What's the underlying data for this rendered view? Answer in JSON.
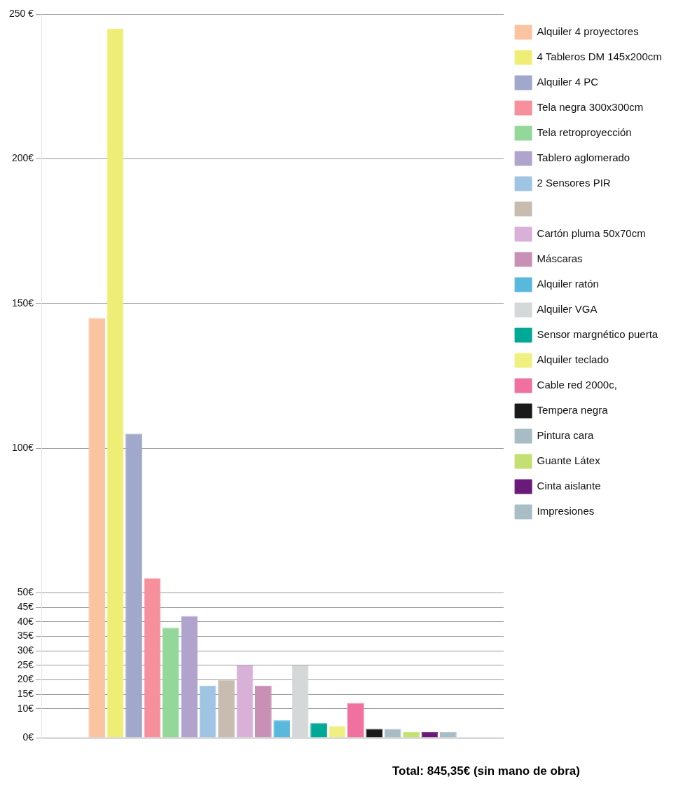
{
  "chart_data": {
    "type": "bar",
    "categories": [
      null
    ],
    "tick_labels": "y",
    "grid": "y",
    "legend": "right",
    "ylim": [
      0,
      250
    ],
    "yticks": [
      {
        "value": 0,
        "label": "0€"
      },
      {
        "value": 10,
        "label": "10€"
      },
      {
        "value": 15,
        "label": "15€"
      },
      {
        "value": 20,
        "label": "20€"
      },
      {
        "value": 25,
        "label": "25€"
      },
      {
        "value": 30,
        "label": "30€"
      },
      {
        "value": 35,
        "label": "35€"
      },
      {
        "value": 40,
        "label": "40€"
      },
      {
        "value": 45,
        "label": "45€"
      },
      {
        "value": 50,
        "label": "50€"
      },
      {
        "value": 100,
        "label": "100€"
      },
      {
        "value": 150,
        "label": "150€"
      },
      {
        "value": 200,
        "label": "200€"
      },
      {
        "value": 250,
        "label": "250 €"
      }
    ],
    "series": [
      {
        "name": "Alquiler 4 proyectores",
        "color": "#fbc4a0",
        "values": [
          145
        ]
      },
      {
        "name": "4 Tableros DM 145x200cm",
        "color": "#eeee77",
        "values": [
          245
        ]
      },
      {
        "name": "Alquiler 4 PC",
        "color": "#a0a8cc",
        "values": [
          105
        ]
      },
      {
        "name": "Tela negra 300x300cm",
        "color": "#f5909c",
        "values": [
          55
        ]
      },
      {
        "name": "Tela retroproyección",
        "color": "#93d89a",
        "values": [
          38
        ]
      },
      {
        "name": "Tablero aglomerado",
        "color": "#b0a4cc",
        "values": [
          42
        ]
      },
      {
        "name": "2 Sensores PIR",
        "color": "#a0c4e4",
        "values": [
          18
        ]
      },
      {
        "color": "#c8bcb0",
        "values": [
          20
        ]
      },
      {
        "name": "Cartón pluma 50x70cm",
        "color": "#d8b0d8",
        "values": [
          25
        ]
      },
      {
        "name": "Máscaras",
        "color": "#c890b4",
        "values": [
          18
        ]
      },
      {
        "name": "Alquiler ratón",
        "color": "#5ab8dc",
        "values": [
          6
        ]
      },
      {
        "name": "Alquiler VGA",
        "color": "#d4d8d8",
        "values": [
          25
        ]
      },
      {
        "name": "Sensor margnético puerta",
        "color": "#00a896",
        "values": [
          5
        ]
      },
      {
        "name": "Alquiler teclado",
        "color": "#f0f080",
        "values": [
          4
        ]
      },
      {
        "name": "Cable red 2000c,",
        "color": "#f070a0",
        "values": [
          12
        ]
      },
      {
        "name": "Tempera negra",
        "color": "#1a1a1a",
        "values": [
          3
        ]
      },
      {
        "name": "Pintura cara",
        "color": "#a8bcc4",
        "values": [
          3
        ]
      },
      {
        "name": "Guante Látex",
        "color": "#c4e070",
        "values": [
          2
        ]
      },
      {
        "name": "Cinta aislante",
        "color": "#6a1a78",
        "values": [
          2
        ]
      },
      {
        "name": "Impresiones",
        "color": "#a8bdc5",
        "values": [
          2
        ]
      }
    ],
    "annotations": [
      "Total: 845,35€ (sin mano de obra)"
    ]
  }
}
